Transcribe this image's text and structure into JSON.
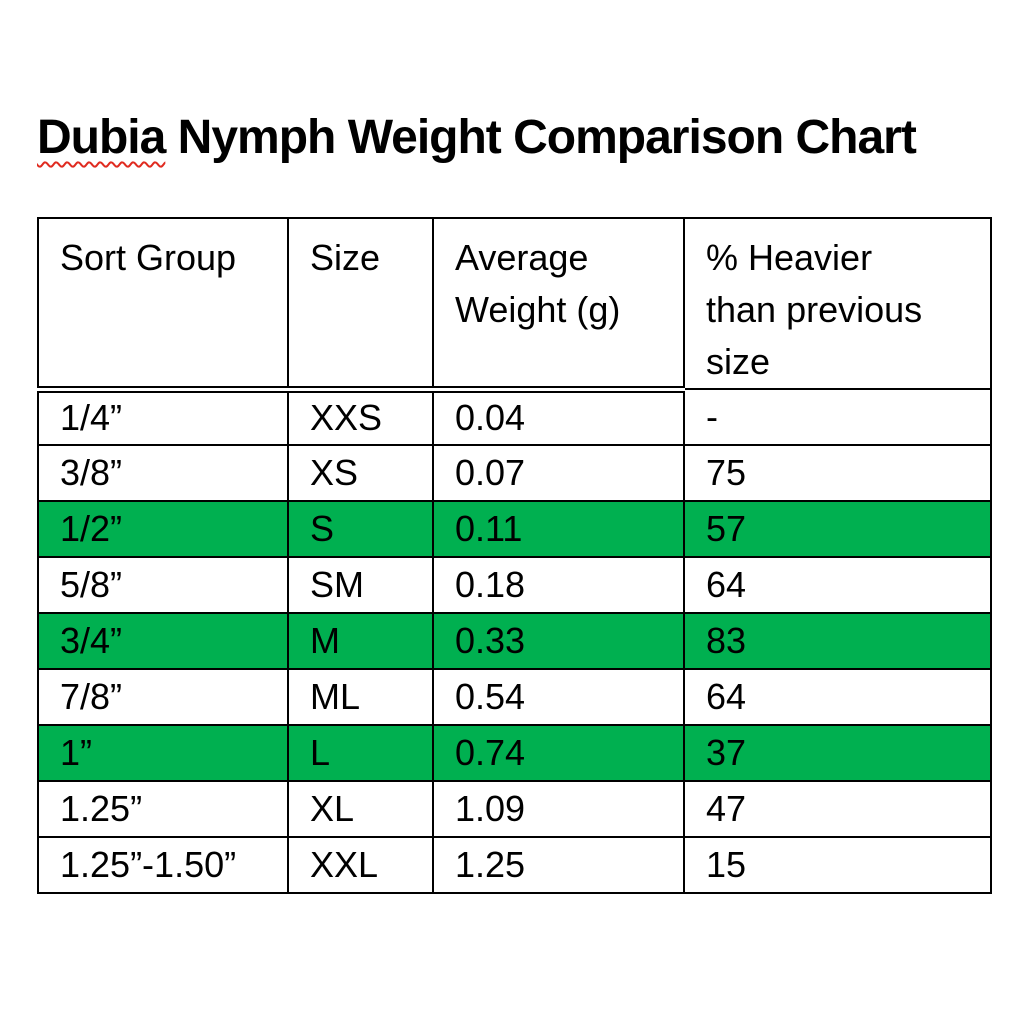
{
  "title": {
    "misspelled_word": "Dubia",
    "rest": " Nymph Weight Comparison Chart",
    "squiggle_color": "#e02b20"
  },
  "table": {
    "columns": [
      "Sort Group",
      "Size",
      "Average Weight (g)",
      "% Heavier than previous size"
    ],
    "rows": [
      [
        "1/4”",
        "XXS",
        "0.04",
        "-"
      ],
      [
        "3/8”",
        "XS",
        "0.07",
        "75"
      ],
      [
        "1/2”",
        "S",
        "0.11",
        "57"
      ],
      [
        "5/8”",
        "SM",
        "0.18",
        "64"
      ],
      [
        "3/4”",
        "M",
        "0.33",
        "83"
      ],
      [
        "7/8”",
        "ML",
        "0.54",
        "64"
      ],
      [
        "1”",
        "L",
        "0.74",
        "37"
      ],
      [
        "1.25”",
        "XL",
        "1.09",
        "47"
      ],
      [
        "1.25”-1.50”",
        "XXL",
        "1.25",
        "15"
      ]
    ],
    "highlight_rows": [
      2,
      4,
      6
    ],
    "highlight_color": "#00B050"
  },
  "chart_data": {
    "type": "table",
    "title": "Dubia Nymph Weight Comparison Chart",
    "columns": [
      "Sort Group",
      "Size",
      "Average Weight (g)",
      "% Heavier than previous size"
    ],
    "rows": [
      {
        "sort_group": "1/4”",
        "size": "XXS",
        "avg_weight_g": 0.04,
        "pct_heavier": null
      },
      {
        "sort_group": "3/8”",
        "size": "XS",
        "avg_weight_g": 0.07,
        "pct_heavier": 75
      },
      {
        "sort_group": "1/2”",
        "size": "S",
        "avg_weight_g": 0.11,
        "pct_heavier": 57
      },
      {
        "sort_group": "5/8”",
        "size": "SM",
        "avg_weight_g": 0.18,
        "pct_heavier": 64
      },
      {
        "sort_group": "3/4”",
        "size": "M",
        "avg_weight_g": 0.33,
        "pct_heavier": 83
      },
      {
        "sort_group": "7/8”",
        "size": "ML",
        "avg_weight_g": 0.54,
        "pct_heavier": 64
      },
      {
        "sort_group": "1”",
        "size": "L",
        "avg_weight_g": 0.74,
        "pct_heavier": 37
      },
      {
        "sort_group": "1.25”",
        "size": "XL",
        "avg_weight_g": 1.09,
        "pct_heavier": 47
      },
      {
        "sort_group": "1.25”-1.50”",
        "size": "XXL",
        "avg_weight_g": 1.25,
        "pct_heavier": 15
      }
    ],
    "highlighted_sizes": [
      "S",
      "M",
      "L"
    ],
    "highlight_color": "#00B050"
  }
}
